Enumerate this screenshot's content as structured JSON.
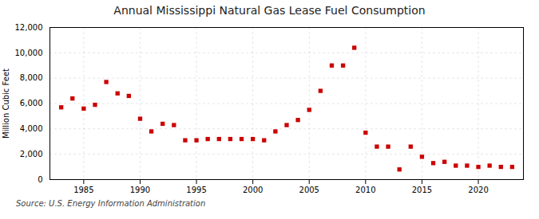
{
  "chart_data": {
    "type": "scatter",
    "title": "Annual Mississippi Natural Gas Lease Fuel Consumption",
    "ylabel": "Million Cubic Feet",
    "source": "Source: U.S. Energy Information Administration",
    "x": [
      1983,
      1984,
      1985,
      1986,
      1987,
      1988,
      1989,
      1990,
      1991,
      1992,
      1993,
      1994,
      1995,
      1996,
      1997,
      1998,
      1999,
      2000,
      2001,
      2002,
      2003,
      2004,
      2005,
      2006,
      2007,
      2008,
      2009,
      2010,
      2011,
      2012,
      2013,
      2014,
      2015,
      2016,
      2017,
      2018,
      2019,
      2020,
      2021,
      2022,
      2023
    ],
    "values": [
      5700,
      6400,
      5600,
      5900,
      7700,
      6800,
      6600,
      4800,
      3800,
      4400,
      4300,
      3100,
      3100,
      3200,
      3200,
      3200,
      3200,
      3200,
      3100,
      3800,
      4300,
      4700,
      5500,
      7000,
      9000,
      9000,
      10400,
      3700,
      2600,
      2600,
      800,
      2600,
      1800,
      1300,
      1400,
      1100,
      1100,
      1000,
      1100,
      1000,
      1000
    ],
    "color": "#cc0000",
    "marker": "square",
    "grid": true,
    "xlim": [
      1982,
      2024
    ],
    "xticks": [
      1985,
      1990,
      1995,
      2000,
      2005,
      2010,
      2015,
      2020
    ],
    "ylim": [
      0,
      12000
    ],
    "yticks": [
      0,
      {
        "value": 2000,
        "label": "2,000"
      },
      {
        "value": 4000,
        "label": "4,000"
      },
      {
        "value": 6000,
        "label": "6,000"
      },
      {
        "value": 8000,
        "label": "8,000"
      },
      {
        "value": 10000,
        "label": "10,000"
      },
      {
        "value": 12000,
        "label": "12,000"
      }
    ]
  }
}
